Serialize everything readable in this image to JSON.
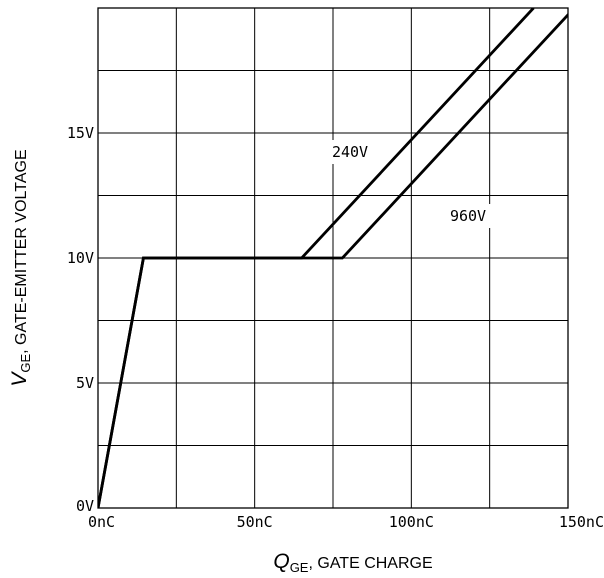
{
  "chart_data": {
    "type": "line",
    "title": "",
    "xlabel": {
      "symbol": "Q",
      "subscript": "GE",
      "text": ", GATE CHARGE"
    },
    "ylabel": {
      "symbol": "V",
      "subscript": "GE",
      "text": ",  GATE-EMITTER VOLTAGE"
    },
    "xlim": [
      0,
      150
    ],
    "ylim": [
      0,
      20
    ],
    "x_ticks": [
      {
        "value": 0,
        "label": "0nC"
      },
      {
        "value": 50,
        "label": "50nC"
      },
      {
        "value": 100,
        "label": "100nC"
      },
      {
        "value": 150,
        "label": "150nC"
      }
    ],
    "y_ticks": [
      {
        "value": 0,
        "label": "0V"
      },
      {
        "value": 5,
        "label": "5V"
      },
      {
        "value": 10,
        "label": "10V"
      },
      {
        "value": 15,
        "label": "15V"
      }
    ],
    "grid": true,
    "series": [
      {
        "name": "240V",
        "x": [
          0,
          14.5,
          65,
          139
        ],
        "y": [
          0,
          10,
          10,
          20
        ]
      },
      {
        "name": "960V",
        "x": [
          0,
          14.5,
          78,
          152
        ],
        "y": [
          0,
          10,
          10,
          20
        ]
      }
    ]
  }
}
